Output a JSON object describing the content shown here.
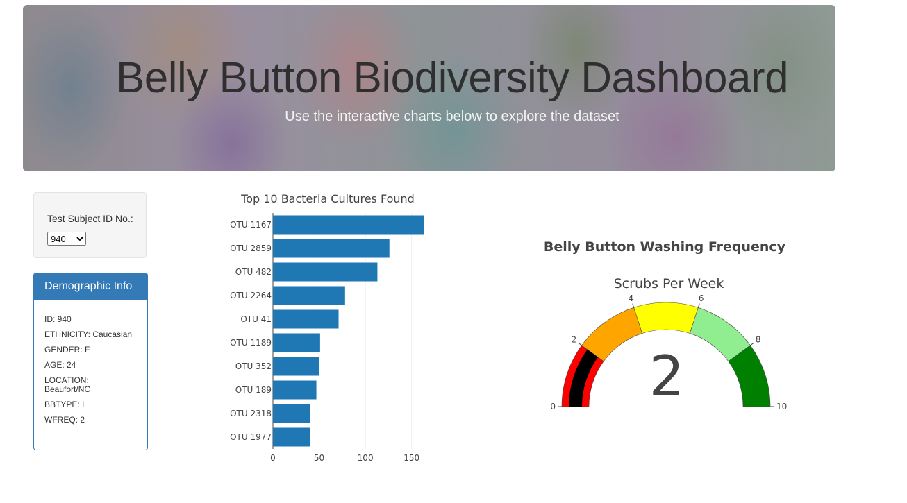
{
  "header": {
    "title": "Belly Button Biodiversity Dashboard",
    "subtitle": "Use the interactive charts below to explore the dataset"
  },
  "selector": {
    "label": "Test Subject ID No.:",
    "selected": "940"
  },
  "demographics": {
    "heading": "Demographic Info",
    "rows": [
      "ID: 940",
      "ETHNICITY: Caucasian",
      "GENDER: F",
      "AGE: 24",
      "LOCATION: Beaufort/NC",
      "BBTYPE: I",
      "WFREQ: 2"
    ]
  },
  "chart_data": [
    {
      "type": "bar",
      "orientation": "horizontal",
      "title": "Top 10 Bacteria Cultures Found",
      "categories": [
        "OTU 1167",
        "OTU 2859",
        "OTU 482",
        "OTU 2264",
        "OTU 41",
        "OTU 1189",
        "OTU 352",
        "OTU 189",
        "OTU 2318",
        "OTU 1977"
      ],
      "values": [
        163,
        126,
        113,
        78,
        71,
        51,
        50,
        47,
        40,
        40
      ],
      "xticks": [
        0,
        50,
        100,
        150
      ],
      "xlim": [
        0,
        163
      ],
      "color": "#1f77b4",
      "grid": true
    },
    {
      "type": "gauge",
      "title": "Belly Button Washing Frequency",
      "subtitle": "Scrubs Per Week",
      "value": 2,
      "range": [
        0,
        10
      ],
      "ticks": [
        0,
        2,
        4,
        6,
        8,
        10
      ],
      "steps": [
        {
          "range": [
            0,
            2
          ],
          "color": "#ff0000"
        },
        {
          "range": [
            2,
            4
          ],
          "color": "#ffa500"
        },
        {
          "range": [
            4,
            6
          ],
          "color": "#ffff00"
        },
        {
          "range": [
            6,
            8
          ],
          "color": "#90ee90"
        },
        {
          "range": [
            8,
            10
          ],
          "color": "#008000"
        }
      ],
      "bar_color": "#000000"
    }
  ]
}
